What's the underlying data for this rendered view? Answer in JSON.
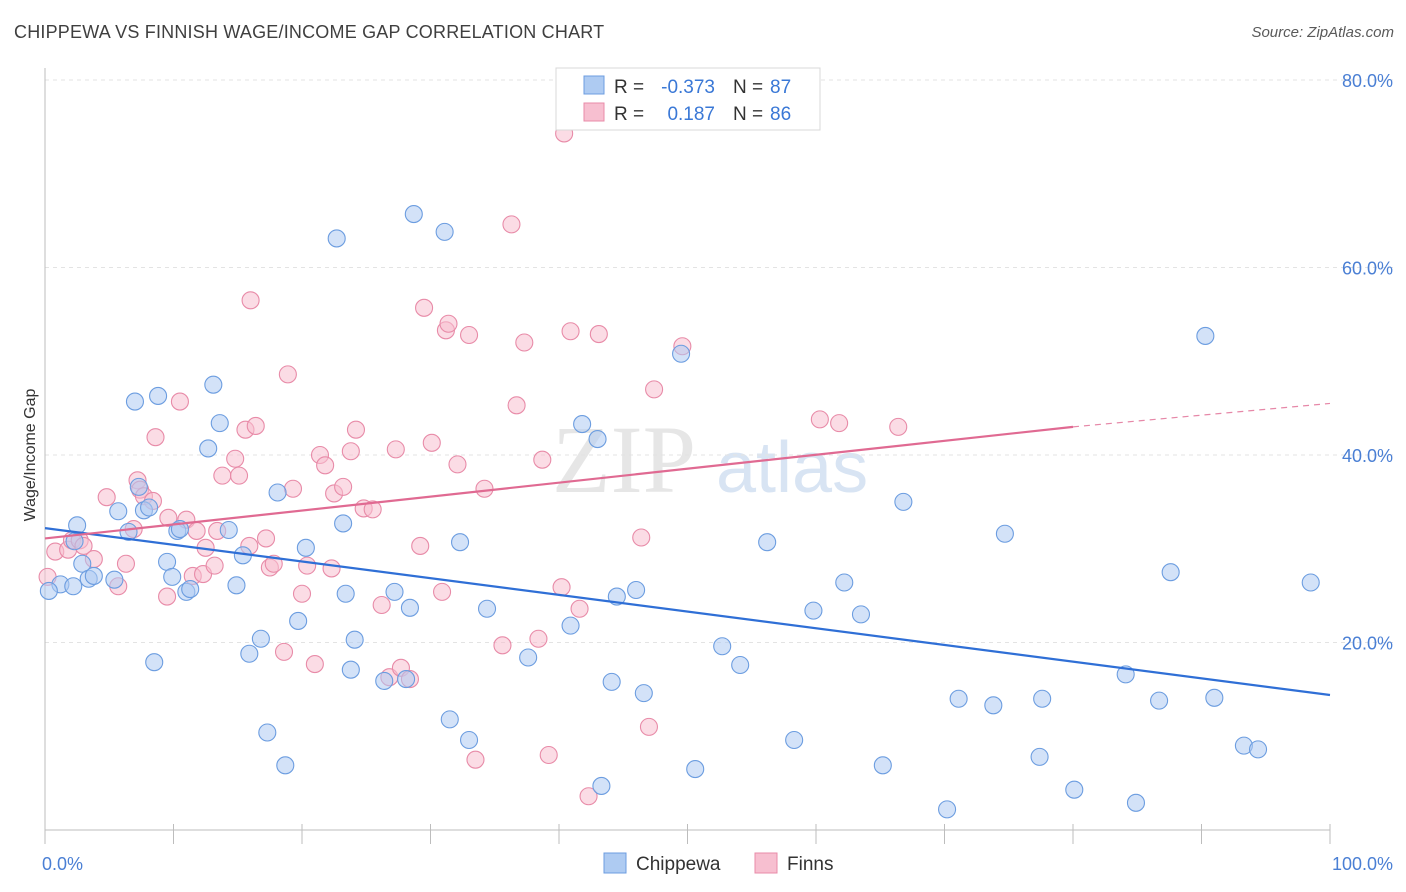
{
  "title": "CHIPPEWA VS FINNISH WAGE/INCOME GAP CORRELATION CHART",
  "source": "Source: ZipAtlas.com",
  "watermark": {
    "zip": "ZIP",
    "atlas": "atlas"
  },
  "legend": {
    "r_label": "R =",
    "n_label": "N =",
    "rows": [
      {
        "r": "-0.373",
        "n": "87"
      },
      {
        "r": "0.187",
        "n": "86"
      }
    ]
  },
  "colors": {
    "chippewa_fill": "#aecbf2",
    "chippewa_stroke": "#6c9de0",
    "chippewa_line": "#2f6fd6",
    "finns_fill": "#f7bfd0",
    "finns_stroke": "#e88ba8",
    "finns_line": "#e06a92"
  },
  "chart_data": {
    "type": "scatter",
    "ylabel": "Wage/Income Gap",
    "xlim": [
      0,
      100
    ],
    "ylim": [
      0,
      80
    ],
    "x_tick_labels": [
      {
        "v": 0,
        "label": "0.0%"
      },
      {
        "v": 100,
        "label": "100.0%"
      }
    ],
    "y_tick_labels": [
      {
        "v": 20,
        "label": "20.0%"
      },
      {
        "v": 40,
        "label": "40.0%"
      },
      {
        "v": 60,
        "label": "60.0%"
      },
      {
        "v": 80,
        "label": "80.0%"
      }
    ],
    "series": [
      {
        "name": "Chippewa",
        "trend": {
          "x0": 0,
          "y0": 32.2,
          "x1": 100,
          "y1": 14.4
        },
        "points": [
          [
            1.2,
            26.2
          ],
          [
            2.2,
            26.0
          ],
          [
            2.3,
            30.8
          ],
          [
            2.5,
            32.5
          ],
          [
            2.9,
            28.4
          ],
          [
            3.4,
            26.8
          ],
          [
            3.8,
            27.1
          ],
          [
            5.4,
            26.7
          ],
          [
            5.7,
            34.0
          ],
          [
            6.5,
            31.8
          ],
          [
            7.0,
            45.7
          ],
          [
            7.3,
            36.6
          ],
          [
            7.7,
            34.1
          ],
          [
            8.1,
            34.4
          ],
          [
            8.5,
            17.9
          ],
          [
            8.8,
            46.3
          ],
          [
            9.5,
            28.6
          ],
          [
            9.9,
            27.0
          ],
          [
            10.3,
            31.9
          ],
          [
            10.5,
            32.1
          ],
          [
            11.0,
            25.4
          ],
          [
            11.3,
            25.7
          ],
          [
            12.7,
            40.7
          ],
          [
            13.1,
            47.5
          ],
          [
            13.6,
            43.4
          ],
          [
            14.3,
            32.0
          ],
          [
            14.9,
            26.1
          ],
          [
            15.4,
            29.3
          ],
          [
            15.9,
            18.8
          ],
          [
            16.8,
            20.4
          ],
          [
            17.3,
            10.4
          ],
          [
            18.1,
            36.0
          ],
          [
            18.7,
            6.9
          ],
          [
            19.7,
            22.3
          ],
          [
            20.3,
            30.1
          ],
          [
            22.7,
            63.1
          ],
          [
            23.2,
            32.7
          ],
          [
            23.4,
            25.2
          ],
          [
            23.8,
            17.1
          ],
          [
            24.1,
            20.3
          ],
          [
            26.4,
            15.9
          ],
          [
            27.2,
            25.4
          ],
          [
            28.1,
            16.1
          ],
          [
            28.4,
            23.7
          ],
          [
            28.7,
            65.7
          ],
          [
            31.1,
            63.8
          ],
          [
            31.5,
            11.8
          ],
          [
            32.3,
            30.7
          ],
          [
            33.0,
            9.6
          ],
          [
            34.4,
            23.6
          ],
          [
            37.6,
            18.4
          ],
          [
            40.9,
            21.8
          ],
          [
            41.8,
            43.3
          ],
          [
            43.0,
            41.7
          ],
          [
            43.3,
            4.7
          ],
          [
            44.1,
            15.8
          ],
          [
            44.5,
            24.9
          ],
          [
            46.0,
            25.6
          ],
          [
            46.6,
            14.6
          ],
          [
            49.5,
            50.8
          ],
          [
            50.6,
            6.5
          ],
          [
            52.7,
            19.6
          ],
          [
            54.1,
            17.6
          ],
          [
            56.2,
            30.7
          ],
          [
            58.3,
            9.6
          ],
          [
            59.8,
            23.4
          ],
          [
            62.2,
            26.4
          ],
          [
            63.5,
            23.0
          ],
          [
            65.2,
            6.9
          ],
          [
            66.8,
            35.0
          ],
          [
            70.2,
            2.2
          ],
          [
            71.1,
            14.0
          ],
          [
            73.8,
            13.3
          ],
          [
            74.7,
            31.6
          ],
          [
            77.4,
            7.8
          ],
          [
            77.6,
            14.0
          ],
          [
            80.1,
            4.3
          ],
          [
            84.1,
            16.6
          ],
          [
            84.9,
            2.9
          ],
          [
            86.7,
            13.8
          ],
          [
            87.6,
            27.5
          ],
          [
            90.3,
            52.7
          ],
          [
            91.0,
            14.1
          ],
          [
            93.3,
            9.0
          ],
          [
            94.4,
            8.6
          ],
          [
            98.5,
            26.4
          ],
          [
            0.3,
            25.5
          ]
        ]
      },
      {
        "name": "Finns",
        "trend": {
          "x0": 0,
          "y0": 31.1,
          "x1": 80,
          "y1": 43.0,
          "dash_x1": 100,
          "dash_y1": 45.5
        },
        "points": [
          [
            0.2,
            27.0
          ],
          [
            0.8,
            29.7
          ],
          [
            1.8,
            29.9
          ],
          [
            2.1,
            30.9
          ],
          [
            2.7,
            30.9
          ],
          [
            3.0,
            30.3
          ],
          [
            3.8,
            28.9
          ],
          [
            4.8,
            35.5
          ],
          [
            5.7,
            26.0
          ],
          [
            6.3,
            28.4
          ],
          [
            6.9,
            32.1
          ],
          [
            7.2,
            37.3
          ],
          [
            7.4,
            36.3
          ],
          [
            7.7,
            35.6
          ],
          [
            8.4,
            35.1
          ],
          [
            8.6,
            41.9
          ],
          [
            9.5,
            24.9
          ],
          [
            9.6,
            33.3
          ],
          [
            10.5,
            45.7
          ],
          [
            11.0,
            33.1
          ],
          [
            11.5,
            27.1
          ],
          [
            11.8,
            31.9
          ],
          [
            12.3,
            27.3
          ],
          [
            12.5,
            30.1
          ],
          [
            13.2,
            28.2
          ],
          [
            13.4,
            31.9
          ],
          [
            13.8,
            37.8
          ],
          [
            14.8,
            39.6
          ],
          [
            15.1,
            37.8
          ],
          [
            15.6,
            42.7
          ],
          [
            15.9,
            30.3
          ],
          [
            16.0,
            56.5
          ],
          [
            16.4,
            43.1
          ],
          [
            17.2,
            31.1
          ],
          [
            17.5,
            28.0
          ],
          [
            17.8,
            28.4
          ],
          [
            18.6,
            19.0
          ],
          [
            18.9,
            48.6
          ],
          [
            19.3,
            36.4
          ],
          [
            20.0,
            25.2
          ],
          [
            20.4,
            28.2
          ],
          [
            21.0,
            17.7
          ],
          [
            21.4,
            40.0
          ],
          [
            21.8,
            38.9
          ],
          [
            22.3,
            27.9
          ],
          [
            22.5,
            35.9
          ],
          [
            23.2,
            36.6
          ],
          [
            23.8,
            40.4
          ],
          [
            24.2,
            42.7
          ],
          [
            24.8,
            34.3
          ],
          [
            25.5,
            34.2
          ],
          [
            26.2,
            24.0
          ],
          [
            26.8,
            16.3
          ],
          [
            27.3,
            40.6
          ],
          [
            27.7,
            17.3
          ],
          [
            28.4,
            16.1
          ],
          [
            29.2,
            30.3
          ],
          [
            29.5,
            55.7
          ],
          [
            30.1,
            41.3
          ],
          [
            30.9,
            25.4
          ],
          [
            31.2,
            53.3
          ],
          [
            31.4,
            54.0
          ],
          [
            32.1,
            39.0
          ],
          [
            33.0,
            52.8
          ],
          [
            33.5,
            7.5
          ],
          [
            34.2,
            36.4
          ],
          [
            35.6,
            19.7
          ],
          [
            36.3,
            64.6
          ],
          [
            36.7,
            45.3
          ],
          [
            37.3,
            52.0
          ],
          [
            38.4,
            20.4
          ],
          [
            38.7,
            39.5
          ],
          [
            39.2,
            8.0
          ],
          [
            40.2,
            25.9
          ],
          [
            40.9,
            53.2
          ],
          [
            41.6,
            23.6
          ],
          [
            42.3,
            3.6
          ],
          [
            43.1,
            52.9
          ],
          [
            46.4,
            31.2
          ],
          [
            47.0,
            11.0
          ],
          [
            47.4,
            47.0
          ],
          [
            49.6,
            51.6
          ],
          [
            60.3,
            43.8
          ],
          [
            61.8,
            43.4
          ],
          [
            66.4,
            43.0
          ],
          [
            40.4,
            74.3
          ]
        ]
      }
    ]
  },
  "bottom_legend": [
    {
      "label": "Chippewa",
      "series": "chippewa"
    },
    {
      "label": "Finns",
      "series": "finns"
    }
  ]
}
